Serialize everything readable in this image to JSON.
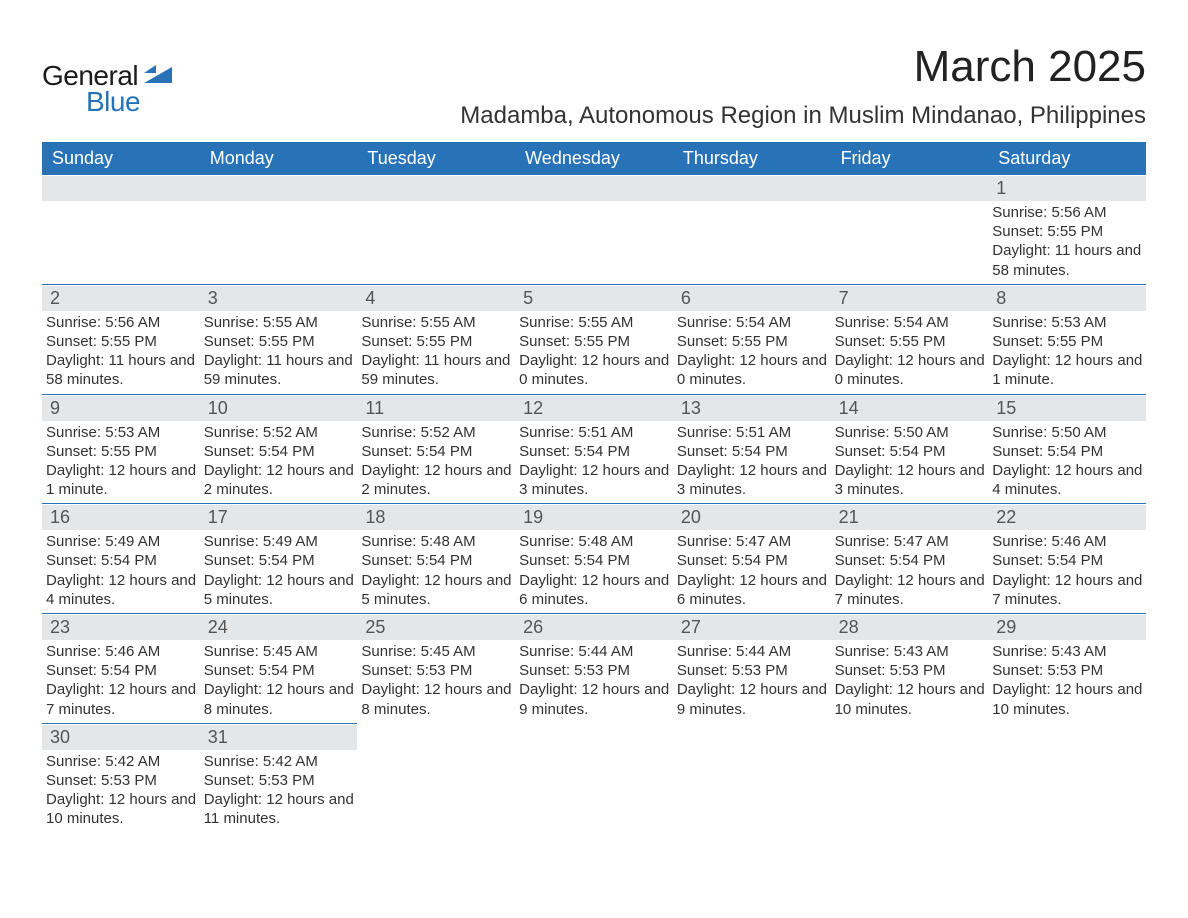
{
  "logo": {
    "word1": "General",
    "word2": "Blue",
    "accent_color": "#2873b8",
    "text_color": "#1a1a1a"
  },
  "title": "March 2025",
  "location": "Madamba, Autonomous Region in Muslim Mindanao, Philippines",
  "colors": {
    "header_bg": "#2873b8",
    "header_text": "#ffffff",
    "daynum_bg": "#e4e7e9",
    "cell_border": "#2873b8",
    "body_text": "#333333",
    "page_bg": "#ffffff"
  },
  "layout": {
    "columns": 7,
    "rows": 6,
    "font_family": "Arial",
    "title_fontsize": 44,
    "location_fontsize": 24,
    "header_fontsize": 18,
    "daynum_fontsize": 18,
    "info_fontsize": 15
  },
  "weekdays": [
    "Sunday",
    "Monday",
    "Tuesday",
    "Wednesday",
    "Thursday",
    "Friday",
    "Saturday"
  ],
  "cells": [
    {
      "empty": true
    },
    {
      "empty": true
    },
    {
      "empty": true
    },
    {
      "empty": true
    },
    {
      "empty": true
    },
    {
      "empty": true
    },
    {
      "day": "1",
      "sunrise": "Sunrise: 5:56 AM",
      "sunset": "Sunset: 5:55 PM",
      "daylight": "Daylight: 11 hours and 58 minutes."
    },
    {
      "day": "2",
      "sunrise": "Sunrise: 5:56 AM",
      "sunset": "Sunset: 5:55 PM",
      "daylight": "Daylight: 11 hours and 58 minutes."
    },
    {
      "day": "3",
      "sunrise": "Sunrise: 5:55 AM",
      "sunset": "Sunset: 5:55 PM",
      "daylight": "Daylight: 11 hours and 59 minutes."
    },
    {
      "day": "4",
      "sunrise": "Sunrise: 5:55 AM",
      "sunset": "Sunset: 5:55 PM",
      "daylight": "Daylight: 11 hours and 59 minutes."
    },
    {
      "day": "5",
      "sunrise": "Sunrise: 5:55 AM",
      "sunset": "Sunset: 5:55 PM",
      "daylight": "Daylight: 12 hours and 0 minutes."
    },
    {
      "day": "6",
      "sunrise": "Sunrise: 5:54 AM",
      "sunset": "Sunset: 5:55 PM",
      "daylight": "Daylight: 12 hours and 0 minutes."
    },
    {
      "day": "7",
      "sunrise": "Sunrise: 5:54 AM",
      "sunset": "Sunset: 5:55 PM",
      "daylight": "Daylight: 12 hours and 0 minutes."
    },
    {
      "day": "8",
      "sunrise": "Sunrise: 5:53 AM",
      "sunset": "Sunset: 5:55 PM",
      "daylight": "Daylight: 12 hours and 1 minute."
    },
    {
      "day": "9",
      "sunrise": "Sunrise: 5:53 AM",
      "sunset": "Sunset: 5:55 PM",
      "daylight": "Daylight: 12 hours and 1 minute."
    },
    {
      "day": "10",
      "sunrise": "Sunrise: 5:52 AM",
      "sunset": "Sunset: 5:54 PM",
      "daylight": "Daylight: 12 hours and 2 minutes."
    },
    {
      "day": "11",
      "sunrise": "Sunrise: 5:52 AM",
      "sunset": "Sunset: 5:54 PM",
      "daylight": "Daylight: 12 hours and 2 minutes."
    },
    {
      "day": "12",
      "sunrise": "Sunrise: 5:51 AM",
      "sunset": "Sunset: 5:54 PM",
      "daylight": "Daylight: 12 hours and 3 minutes."
    },
    {
      "day": "13",
      "sunrise": "Sunrise: 5:51 AM",
      "sunset": "Sunset: 5:54 PM",
      "daylight": "Daylight: 12 hours and 3 minutes."
    },
    {
      "day": "14",
      "sunrise": "Sunrise: 5:50 AM",
      "sunset": "Sunset: 5:54 PM",
      "daylight": "Daylight: 12 hours and 3 minutes."
    },
    {
      "day": "15",
      "sunrise": "Sunrise: 5:50 AM",
      "sunset": "Sunset: 5:54 PM",
      "daylight": "Daylight: 12 hours and 4 minutes."
    },
    {
      "day": "16",
      "sunrise": "Sunrise: 5:49 AM",
      "sunset": "Sunset: 5:54 PM",
      "daylight": "Daylight: 12 hours and 4 minutes."
    },
    {
      "day": "17",
      "sunrise": "Sunrise: 5:49 AM",
      "sunset": "Sunset: 5:54 PM",
      "daylight": "Daylight: 12 hours and 5 minutes."
    },
    {
      "day": "18",
      "sunrise": "Sunrise: 5:48 AM",
      "sunset": "Sunset: 5:54 PM",
      "daylight": "Daylight: 12 hours and 5 minutes."
    },
    {
      "day": "19",
      "sunrise": "Sunrise: 5:48 AM",
      "sunset": "Sunset: 5:54 PM",
      "daylight": "Daylight: 12 hours and 6 minutes."
    },
    {
      "day": "20",
      "sunrise": "Sunrise: 5:47 AM",
      "sunset": "Sunset: 5:54 PM",
      "daylight": "Daylight: 12 hours and 6 minutes."
    },
    {
      "day": "21",
      "sunrise": "Sunrise: 5:47 AM",
      "sunset": "Sunset: 5:54 PM",
      "daylight": "Daylight: 12 hours and 7 minutes."
    },
    {
      "day": "22",
      "sunrise": "Sunrise: 5:46 AM",
      "sunset": "Sunset: 5:54 PM",
      "daylight": "Daylight: 12 hours and 7 minutes."
    },
    {
      "day": "23",
      "sunrise": "Sunrise: 5:46 AM",
      "sunset": "Sunset: 5:54 PM",
      "daylight": "Daylight: 12 hours and 7 minutes."
    },
    {
      "day": "24",
      "sunrise": "Sunrise: 5:45 AM",
      "sunset": "Sunset: 5:54 PM",
      "daylight": "Daylight: 12 hours and 8 minutes."
    },
    {
      "day": "25",
      "sunrise": "Sunrise: 5:45 AM",
      "sunset": "Sunset: 5:53 PM",
      "daylight": "Daylight: 12 hours and 8 minutes."
    },
    {
      "day": "26",
      "sunrise": "Sunrise: 5:44 AM",
      "sunset": "Sunset: 5:53 PM",
      "daylight": "Daylight: 12 hours and 9 minutes."
    },
    {
      "day": "27",
      "sunrise": "Sunrise: 5:44 AM",
      "sunset": "Sunset: 5:53 PM",
      "daylight": "Daylight: 12 hours and 9 minutes."
    },
    {
      "day": "28",
      "sunrise": "Sunrise: 5:43 AM",
      "sunset": "Sunset: 5:53 PM",
      "daylight": "Daylight: 12 hours and 10 minutes."
    },
    {
      "day": "29",
      "sunrise": "Sunrise: 5:43 AM",
      "sunset": "Sunset: 5:53 PM",
      "daylight": "Daylight: 12 hours and 10 minutes."
    },
    {
      "day": "30",
      "sunrise": "Sunrise: 5:42 AM",
      "sunset": "Sunset: 5:53 PM",
      "daylight": "Daylight: 12 hours and 10 minutes."
    },
    {
      "day": "31",
      "sunrise": "Sunrise: 5:42 AM",
      "sunset": "Sunset: 5:53 PM",
      "daylight": "Daylight: 12 hours and 11 minutes."
    },
    {
      "empty": true,
      "noborder": true
    },
    {
      "empty": true,
      "noborder": true
    },
    {
      "empty": true,
      "noborder": true
    },
    {
      "empty": true,
      "noborder": true
    },
    {
      "empty": true,
      "noborder": true
    }
  ]
}
